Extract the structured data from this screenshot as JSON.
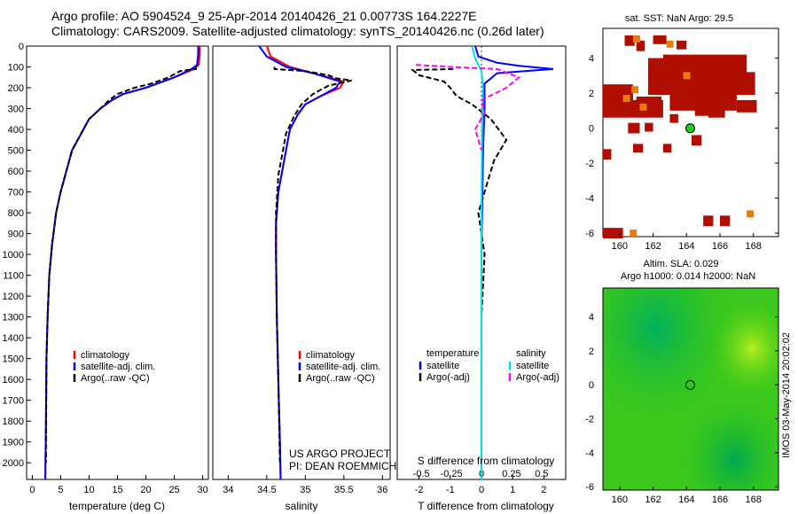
{
  "title_line1": "Argo profile: AO 5904524_9 25-Apr-2014 20140426_21 0.00773S 164.2227E",
  "title_line2": "Climatology: CARS2009. Satellite-adjusted climatology: synTS_20140426.nc (0.26d later)",
  "credit_line1": "US ARGO PROJECT",
  "credit_line2": "PI: DEAN ROEMMICH",
  "imos_stamp": "IMOS 03-May-2014 20:02:02",
  "colors": {
    "climatology": "#ff0000",
    "satellite": "#0000ff",
    "argo": "#000000",
    "cyan": "#00e0e0",
    "magenta": "#ff00ff"
  },
  "chart_data": [
    {
      "type": "line",
      "name": "temperature-profile",
      "xlabel": "temperature (deg C)",
      "ylabel": "",
      "xlim": [
        -1,
        31
      ],
      "ylim": [
        2080,
        0
      ],
      "xticks": [
        0,
        5,
        10,
        15,
        20,
        25,
        30
      ],
      "xtick_labels": [
        "0",
        "5",
        "10",
        "15",
        "20",
        "25",
        "30"
      ],
      "yticks": [
        0,
        100,
        200,
        300,
        400,
        500,
        600,
        700,
        800,
        900,
        1000,
        1100,
        1200,
        1300,
        1400,
        1500,
        1600,
        1700,
        1800,
        1900,
        2000
      ],
      "ytick_labels": [
        "0",
        "100",
        "200",
        "300",
        "400",
        "500",
        "600",
        "700",
        "800",
        "900",
        "1000",
        "1100",
        "1200",
        "1300",
        "1400",
        "1500",
        "1600",
        "1700",
        "1800",
        "1900",
        "2000"
      ],
      "legend": [
        "climatology",
        "satellite-adj. clim.",
        "Argo(..raw -QC)"
      ],
      "series": [
        {
          "name": "climatology",
          "color": "#ff0000",
          "x": [
            29.5,
            29.5,
            29.3,
            28.5,
            25,
            20,
            16,
            14,
            12,
            10,
            9,
            8,
            7,
            6,
            5,
            4.2,
            3.5,
            3.0,
            2.7,
            2.5,
            2.4,
            2.3
          ],
          "y": [
            0,
            40,
            90,
            110,
            150,
            200,
            230,
            260,
            300,
            350,
            400,
            450,
            500,
            600,
            700,
            800,
            950,
            1100,
            1300,
            1500,
            1800,
            2080
          ]
        },
        {
          "name": "satellite-adj. clim.",
          "color": "#0000ff",
          "x": [
            29.2,
            29.2,
            29.0,
            28.0,
            25,
            20,
            16,
            14,
            12,
            10,
            9,
            8,
            7,
            6,
            5,
            4.2,
            3.5,
            3.0,
            2.7,
            2.5,
            2.4,
            2.3
          ],
          "y": [
            0,
            40,
            90,
            110,
            150,
            200,
            230,
            260,
            300,
            350,
            400,
            450,
            500,
            600,
            700,
            800,
            950,
            1100,
            1300,
            1500,
            1800,
            2080
          ]
        },
        {
          "name": "Argo(..raw -QC)",
          "color": "#000000",
          "dashed": true,
          "x": [
            28.8,
            28.8,
            26,
            24,
            21,
            18,
            15,
            13.5,
            12,
            10,
            9,
            8,
            7,
            6,
            5,
            4.2,
            3.5,
            3.0,
            2.7,
            2.5,
            2.4
          ],
          "y": [
            100,
            110,
            120,
            150,
            180,
            200,
            230,
            260,
            300,
            350,
            400,
            450,
            500,
            600,
            700,
            800,
            950,
            1100,
            1300,
            1500,
            2000
          ]
        }
      ]
    },
    {
      "type": "line",
      "name": "salinity-profile",
      "xlabel": "salinity",
      "xlim": [
        33.8,
        36.1
      ],
      "xticks": [
        34,
        34.5,
        35,
        35.5,
        36
      ],
      "xtick_labels": [
        "34",
        "34.5",
        "35",
        "35.5",
        "36"
      ],
      "legend": [
        "climatology",
        "satellite-adj. clim.",
        "Argo(..raw -QC)"
      ],
      "series": [
        {
          "name": "climatology",
          "color": "#ff0000",
          "x": [
            34.5,
            34.55,
            34.8,
            35.1,
            35.5,
            35.45,
            35.2,
            35.0,
            34.9,
            34.8,
            34.75,
            34.7,
            34.65,
            34.62,
            34.62,
            34.63,
            34.65,
            34.67,
            34.68
          ],
          "y": [
            0,
            50,
            100,
            130,
            170,
            200,
            240,
            280,
            330,
            400,
            500,
            600,
            700,
            850,
            1000,
            1300,
            1600,
            1900,
            2080
          ]
        },
        {
          "name": "satellite-adj. clim.",
          "color": "#0000ff",
          "x": [
            34.4,
            34.5,
            34.75,
            35.1,
            35.45,
            35.4,
            35.2,
            35.0,
            34.9,
            34.8,
            34.75,
            34.7,
            34.65,
            34.62,
            34.62,
            34.63,
            34.65,
            34.67,
            34.68
          ],
          "y": [
            0,
            50,
            100,
            130,
            170,
            200,
            240,
            280,
            330,
            400,
            500,
            600,
            700,
            850,
            1000,
            1300,
            1600,
            1900,
            2080
          ]
        },
        {
          "name": "Argo(..raw -QC)",
          "color": "#000000",
          "dashed": true,
          "x": [
            34.6,
            34.6,
            35.0,
            35.3,
            35.4,
            35.6,
            35.3,
            35.1,
            34.95,
            34.85,
            34.75,
            34.7,
            34.65,
            34.62,
            34.62,
            34.63,
            34.65,
            34.67
          ],
          "y": [
            100,
            110,
            120,
            140,
            155,
            165,
            190,
            230,
            280,
            340,
            420,
            520,
            620,
            800,
            1000,
            1300,
            1600,
            2000
          ]
        }
      ],
      "credit": [
        "US ARGO PROJECT",
        "PI: DEAN ROEMMICH"
      ]
    },
    {
      "type": "line",
      "name": "difference-profile",
      "xlabel": "T difference from climatology",
      "xlabel_top": "S difference from climatology",
      "xlim": [
        -2.7,
        2.7
      ],
      "xticks": [
        -2,
        -1,
        0,
        1,
        2
      ],
      "xtick_labels": [
        "-2",
        "-1",
        "0",
        "1",
        "2"
      ],
      "top_ticks": [
        -0.5,
        -0.25,
        0,
        0.25,
        0.5
      ],
      "top_tick_labels": [
        "-0.5",
        "-0.25",
        "0",
        "0.25",
        "0.5"
      ],
      "legend": {
        "left_title": "temperature",
        "right_title": "salinity",
        "left": [
          "satellite",
          "Argo(-adj)"
        ],
        "right": [
          "satellite",
          "Argo(-adj)"
        ]
      },
      "series": [
        {
          "name": "T satellite",
          "color": "#0000ff",
          "x": [
            -0.2,
            -0.1,
            0.5,
            1.2,
            2.3,
            0.5,
            0.1,
            0.1,
            0.05,
            0.0,
            0.0,
            0.0
          ],
          "y": [
            0,
            50,
            80,
            95,
            110,
            130,
            180,
            300,
            500,
            1000,
            1500,
            2080
          ]
        },
        {
          "name": "T Argo(-adj)",
          "color": "#000000",
          "dashed": true,
          "x": [
            -0.9,
            -2.2,
            -2.0,
            -1.2,
            -1.0,
            -0.8,
            -0.3,
            0.3,
            0.8,
            0.4,
            0.2,
            -0.1,
            0.1,
            0.0,
            0.0,
            0.0
          ],
          "y": [
            110,
            115,
            140,
            170,
            200,
            240,
            280,
            350,
            450,
            550,
            650,
            800,
            1000,
            1300,
            1700,
            2000
          ]
        },
        {
          "name": "S satellite",
          "color": "#00e0e0",
          "x": [
            -0.3,
            -0.2,
            0.0,
            0.05,
            0.02,
            0.0,
            0.0,
            0.0
          ],
          "y": [
            0,
            60,
            120,
            200,
            400,
            800,
            1500,
            2080
          ]
        },
        {
          "name": "S Argo(-adj)",
          "color": "#ff00ff",
          "dashed": true,
          "x": [
            -2.1,
            -1.0,
            0.5,
            1.2,
            0.8,
            0.0,
            0.1,
            -0.2,
            0.0
          ],
          "y": [
            90,
            100,
            110,
            150,
            200,
            260,
            320,
            400,
            500
          ]
        }
      ]
    },
    {
      "type": "heatmap",
      "name": "sst-map",
      "title": "sat. SST: NaN Argo: 29.5",
      "xlim": [
        159,
        169.5
      ],
      "ylim": [
        -6.2,
        5.7
      ],
      "xticks": [
        160,
        162,
        164,
        166,
        168
      ],
      "xtick_labels": [
        "160",
        "162",
        "164",
        "166",
        "168"
      ],
      "yticks": [
        -6,
        -4,
        -2,
        0,
        2,
        4
      ],
      "ytick_labels": [
        "-6",
        "-4",
        "-2",
        "0",
        "2",
        "4"
      ],
      "marker": {
        "lon": 164.22,
        "lat": -0.01,
        "color": "#22cc22"
      }
    },
    {
      "type": "heatmap",
      "name": "sla-map",
      "title": "Altim. SLA: 0.029",
      "subtitle": "Argo h1000: 0.014 h2000: NaN",
      "xlim": [
        159,
        169.5
      ],
      "ylim": [
        -6.2,
        5.7
      ],
      "xticks": [
        160,
        162,
        164,
        166,
        168
      ],
      "xtick_labels": [
        "160",
        "162",
        "164",
        "166",
        "168"
      ],
      "yticks": [
        -6,
        -4,
        -2,
        0,
        2,
        4
      ],
      "ytick_labels": [
        "-6",
        "-4",
        "-2",
        "0",
        "2",
        "4"
      ],
      "marker": {
        "lon": 164.22,
        "lat": -0.01,
        "color": "none"
      }
    }
  ]
}
